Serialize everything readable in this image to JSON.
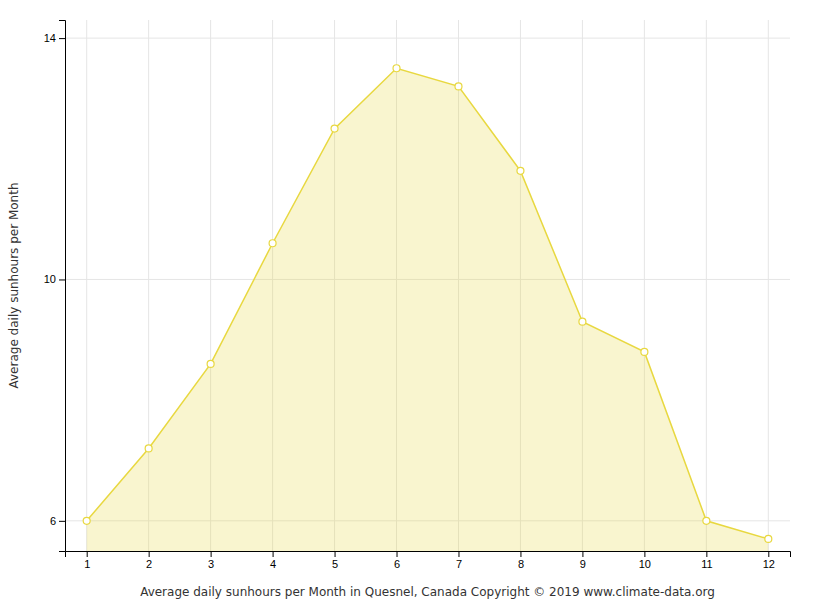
{
  "chart_data": {
    "type": "area",
    "x": [
      1,
      2,
      3,
      4,
      5,
      6,
      7,
      8,
      9,
      10,
      11,
      12
    ],
    "values": [
      6.0,
      7.2,
      8.6,
      10.6,
      12.5,
      13.5,
      13.2,
      11.8,
      9.3,
      8.8,
      6.0,
      5.7
    ],
    "xlabel": "Average daily sunhours per Month in Quesnel, Canada Copyright © 2019 www.climate-data.org",
    "ylabel": "Average daily sunhours per Month",
    "xlim": [
      0.65,
      12.35
    ],
    "ylim": [
      5.5,
      14.3
    ],
    "xticks": [
      1,
      2,
      3,
      4,
      5,
      6,
      7,
      8,
      9,
      10,
      11,
      12
    ],
    "yticks": [
      6,
      10,
      14
    ],
    "grid": true,
    "color": "#E8D840",
    "marker": "circle"
  }
}
